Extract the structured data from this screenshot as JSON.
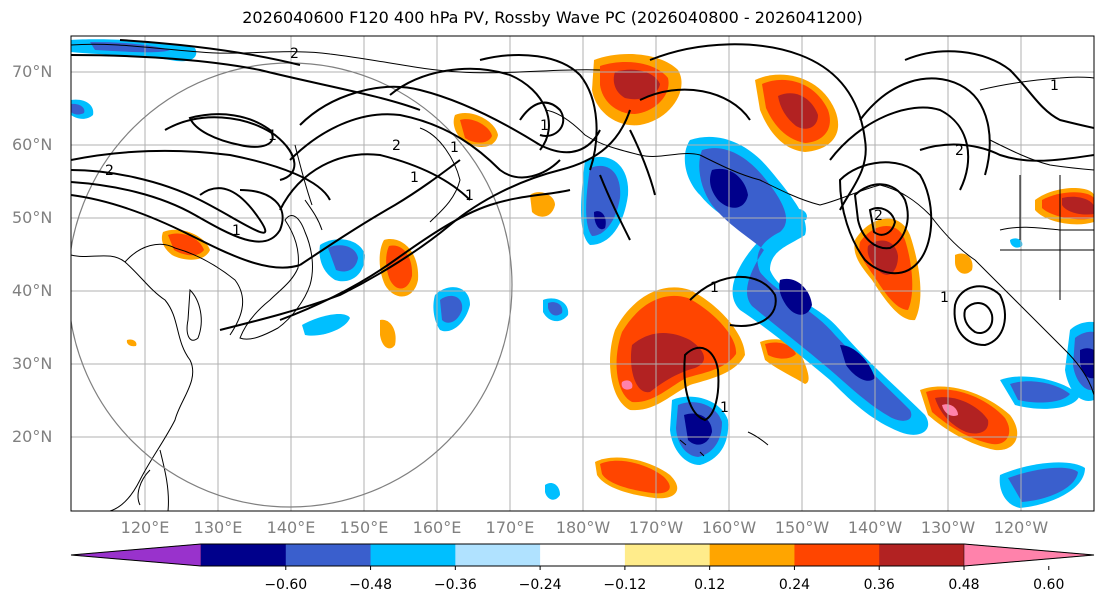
{
  "title": "2026040600 F120 400 hPa PV, Rossby Wave PC (2026040800 - 2026041200)",
  "lat_labels": [
    "70°N",
    "60°N",
    "50°N",
    "40°N",
    "30°N",
    "20°N"
  ],
  "lon_labels": [
    "120°E",
    "130°E",
    "140°E",
    "150°E",
    "160°E",
    "170°E",
    "180°W",
    "170°W",
    "160°W",
    "150°W",
    "140°W",
    "130°W",
    "120°W"
  ],
  "contour_labels": [
    "2",
    "1",
    "2",
    "1",
    "2",
    "1",
    "1",
    "1",
    "1",
    "1",
    "1",
    "2",
    "1",
    "2",
    "1"
  ],
  "colorbar": {
    "ticks": [
      "−0.60",
      "−0.48",
      "−0.36",
      "−0.24",
      "−0.12",
      "0.12",
      "0.24",
      "0.36",
      "0.48",
      "0.60"
    ],
    "colors": [
      "#9932CC",
      "#00008B",
      "#3A5FCD",
      "#00BFFF",
      "#B0E2FF",
      "#FFFFFF",
      "#FFEC8B",
      "#FFA500",
      "#FF4500",
      "#B22222",
      "#FF82AB"
    ]
  }
}
